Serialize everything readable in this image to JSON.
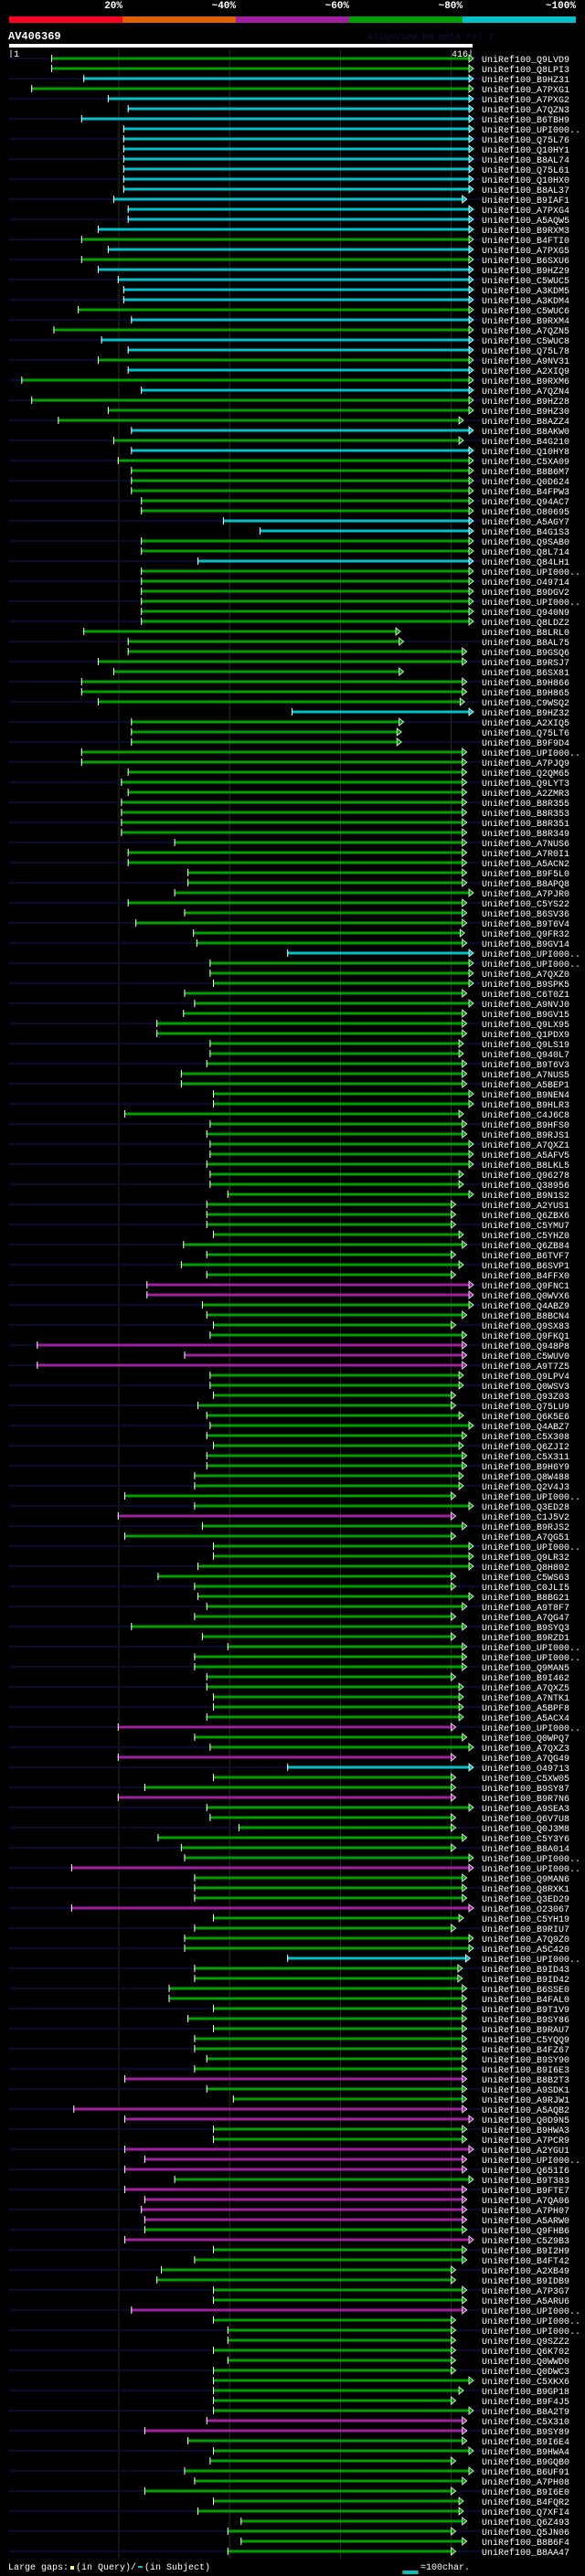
{
  "header": {
    "identity_scale": [
      "20%",
      "~40%",
      "~60%",
      "~80%",
      "~100%"
    ],
    "identity_colors": [
      "#ff0022",
      "#e06000",
      "#a020a0",
      "#00a000",
      "#00c0c8"
    ],
    "query_name": "AV406369",
    "version": "AlignView.pm Beta rel.7",
    "query_start": "|1",
    "query_end": "416|",
    "query_length": 416
  },
  "colors": {
    "g": "#00a000",
    "c": "#00c0c8",
    "m": "#a020a0"
  },
  "rows": [
    [
      "UniRef100_Q9LVD9",
      39,
      416,
      "g"
    ],
    [
      "UniRef100_Q8LPI3",
      39,
      416,
      "g"
    ],
    [
      "UniRef100_B9HZ31",
      68,
      416,
      "c"
    ],
    [
      "UniRef100_A7PXG1",
      21,
      416,
      "g"
    ],
    [
      "UniRef100_A7PXG2",
      90,
      416,
      "c"
    ],
    [
      "UniRef100_A7QZN3",
      108,
      416,
      "c"
    ],
    [
      "UniRef100_B6TBH9",
      66,
      416,
      "c"
    ],
    [
      "UniRef100_UPI000..",
      104,
      416,
      "c"
    ],
    [
      "UniRef100_Q75L76",
      104,
      416,
      "c"
    ],
    [
      "UniRef100_Q10HY1",
      104,
      416,
      "c"
    ],
    [
      "UniRef100_B8AL74",
      104,
      416,
      "c"
    ],
    [
      "UniRef100_Q75L61",
      104,
      416,
      "c"
    ],
    [
      "UniRef100_Q10HX0",
      104,
      416,
      "c"
    ],
    [
      "UniRef100_B8AL37",
      104,
      416,
      "c"
    ],
    [
      "UniRef100_B9IAF1",
      95,
      410,
      "c"
    ],
    [
      "UniRef100_A7PXG4",
      108,
      416,
      "c"
    ],
    [
      "UniRef100_A5AQW5",
      108,
      416,
      "c"
    ],
    [
      "UniRef100_B9RXM3",
      81,
      416,
      "c"
    ],
    [
      "UniRef100_B4FTI0",
      66,
      416,
      "g"
    ],
    [
      "UniRef100_A7PXG5",
      90,
      416,
      "c"
    ],
    [
      "UniRef100_B6SXU6",
      66,
      416,
      "g"
    ],
    [
      "UniRef100_B9HZ29",
      81,
      416,
      "c"
    ],
    [
      "UniRef100_C5WUC5",
      99,
      416,
      "c"
    ],
    [
      "UniRef100_A3KDM5",
      104,
      416,
      "c"
    ],
    [
      "UniRef100_A3KDM4",
      104,
      416,
      "c"
    ],
    [
      "UniRef100_C5WUC6",
      63,
      416,
      "g"
    ],
    [
      "UniRef100_B9RXM4",
      111,
      416,
      "c"
    ],
    [
      "UniRef100_A7QZN5",
      41,
      416,
      "g"
    ],
    [
      "UniRef100_C5WUC8",
      84,
      416,
      "c"
    ],
    [
      "UniRef100_Q75L78",
      108,
      416,
      "c"
    ],
    [
      "UniRef100_A9NV31",
      81,
      416,
      "g"
    ],
    [
      "UniRef100_A2XIQ9",
      108,
      416,
      "c"
    ],
    [
      "UniRef100_B9RXM6",
      12,
      416,
      "g"
    ],
    [
      "UniRef100_A7QZN4",
      120,
      416,
      "c"
    ],
    [
      "UniRef100_B9HZ28",
      21,
      416,
      "g"
    ],
    [
      "UniRef100_B9HZ30",
      90,
      416,
      "g"
    ],
    [
      "UniRef100_B8AZZ4",
      45,
      407,
      "g"
    ],
    [
      "UniRef100_B8AKW0",
      111,
      416,
      "c"
    ],
    [
      "UniRef100_B4G210",
      95,
      407,
      "g"
    ],
    [
      "UniRef100_Q10HY8",
      111,
      416,
      "c"
    ],
    [
      "UniRef100_C5XA09",
      99,
      416,
      "g"
    ],
    [
      "UniRef100_B8B6M7",
      111,
      416,
      "g"
    ],
    [
      "UniRef100_Q0D624",
      111,
      416,
      "g"
    ],
    [
      "UniRef100_B4FPW3",
      111,
      416,
      "g"
    ],
    [
      "UniRef100_Q94AC7",
      120,
      416,
      "g"
    ],
    [
      "UniRef100_O80695",
      120,
      416,
      "g"
    ],
    [
      "UniRef100_A5AGY7",
      194,
      416,
      "c"
    ],
    [
      "UniRef100_B4G1S3",
      227,
      416,
      "c"
    ],
    [
      "UniRef100_Q9SAB0",
      120,
      416,
      "g"
    ],
    [
      "UniRef100_Q8L714",
      120,
      416,
      "g"
    ],
    [
      "UniRef100_Q84LH1",
      171,
      416,
      "c"
    ],
    [
      "UniRef100_UPI000..",
      120,
      416,
      "g"
    ],
    [
      "UniRef100_O49714",
      120,
      416,
      "g"
    ],
    [
      "UniRef100_B9DGV2",
      120,
      416,
      "g"
    ],
    [
      "UniRef100_UPI000..",
      120,
      416,
      "g"
    ],
    [
      "UniRef100_Q940N9",
      120,
      416,
      "g"
    ],
    [
      "UniRef100_Q8LDZ2",
      120,
      416,
      "g"
    ],
    [
      "UniRef100_B8LRL0",
      68,
      350,
      "g"
    ],
    [
      "UniRef100_B8AL75",
      108,
      353,
      "g"
    ],
    [
      "UniRef100_B9GSQ6",
      108,
      410,
      "g"
    ],
    [
      "UniRef100_B9RSJ7",
      81,
      410,
      "g"
    ],
    [
      "UniRef100_B6SX81",
      95,
      353,
      "g"
    ],
    [
      "UniRef100_B9H866",
      66,
      410,
      "g"
    ],
    [
      "UniRef100_B9H865",
      66,
      410,
      "g"
    ],
    [
      "UniRef100_C9WSQ2",
      81,
      408,
      "g"
    ],
    [
      "UniRef100_B9HZ32",
      256,
      416,
      "c"
    ],
    [
      "UniRef100_A2XIQ5",
      111,
      353,
      "g"
    ],
    [
      "UniRef100_Q75LT6",
      111,
      351,
      "g"
    ],
    [
      "UniRef100_B9F9D4",
      111,
      351,
      "g"
    ],
    [
      "UniRef100_UPI000..",
      66,
      410,
      "g"
    ],
    [
      "UniRef100_A7PJQ9",
      66,
      410,
      "g"
    ],
    [
      "UniRef100_Q2QM65",
      108,
      410,
      "g"
    ],
    [
      "UniRef100_Q9LYT3",
      102,
      410,
      "g"
    ],
    [
      "UniRef100_A2ZMR3",
      108,
      410,
      "g"
    ],
    [
      "UniRef100_B8R355",
      102,
      410,
      "g"
    ],
    [
      "UniRef100_B8R353",
      102,
      410,
      "g"
    ],
    [
      "UniRef100_B8R351",
      102,
      410,
      "g"
    ],
    [
      "UniRef100_B8R349",
      102,
      410,
      "g"
    ],
    [
      "UniRef100_A7NUS6",
      150,
      410,
      "g"
    ],
    [
      "UniRef100_A7R0I1",
      108,
      410,
      "g"
    ],
    [
      "UniRef100_A5ACN2",
      108,
      410,
      "g"
    ],
    [
      "UniRef100_B9F5L0",
      162,
      410,
      "g"
    ],
    [
      "UniRef100_B8APQ8",
      162,
      410,
      "g"
    ],
    [
      "UniRef100_A7PJR0",
      150,
      416,
      "g"
    ],
    [
      "UniRef100_C5YS22",
      108,
      410,
      "g"
    ],
    [
      "UniRef100_B6SV36",
      159,
      410,
      "g"
    ],
    [
      "UniRef100_B9T6V4",
      115,
      410,
      "g"
    ],
    [
      "UniRef100_Q9FR32",
      167,
      408,
      "g"
    ],
    [
      "UniRef100_B9GV14",
      170,
      410,
      "g"
    ],
    [
      "UniRef100_UPI000..",
      252,
      416,
      "c"
    ],
    [
      "UniRef100_UPI000..",
      182,
      416,
      "g"
    ],
    [
      "UniRef100_A7QXZ0",
      182,
      416,
      "g"
    ],
    [
      "UniRef100_B9SPK5",
      185,
      416,
      "g"
    ],
    [
      "UniRef100_C6T0Z1",
      159,
      410,
      "g"
    ],
    [
      "UniRef100_A9NVJ0",
      168,
      416,
      "g"
    ],
    [
      "UniRef100_B9GV15",
      158,
      410,
      "g"
    ],
    [
      "UniRef100_Q9LX95",
      134,
      410,
      "g"
    ],
    [
      "UniRef100_Q1PDX9",
      134,
      410,
      "g"
    ],
    [
      "UniRef100_Q9LS19",
      182,
      407,
      "g"
    ],
    [
      "UniRef100_Q940L7",
      182,
      407,
      "g"
    ],
    [
      "UniRef100_B9T6V3",
      179,
      410,
      "g"
    ],
    [
      "UniRef100_A7NUS5",
      156,
      410,
      "g"
    ],
    [
      "UniRef100_A5BEP1",
      156,
      410,
      "g"
    ],
    [
      "UniRef100_B9NEN4",
      185,
      416,
      "g"
    ],
    [
      "UniRef100_B9HLR3",
      185,
      416,
      "g"
    ],
    [
      "UniRef100_C4J6C8",
      105,
      407,
      "g"
    ],
    [
      "UniRef100_B9HFS0",
      182,
      410,
      "g"
    ],
    [
      "UniRef100_B9RJS1",
      179,
      410,
      "g"
    ],
    [
      "UniRef100_A7QXZ1",
      182,
      416,
      "g"
    ],
    [
      "UniRef100_A5AFV5",
      182,
      416,
      "g"
    ],
    [
      "UniRef100_B8LKL5",
      179,
      416,
      "g"
    ],
    [
      "UniRef100_Q96278",
      182,
      407,
      "g"
    ],
    [
      "UniRef100_Q38956",
      182,
      407,
      "g"
    ],
    [
      "UniRef100_B9N1S2",
      198,
      416,
      "g"
    ],
    [
      "UniRef100_A2YUS1",
      179,
      400,
      "g"
    ],
    [
      "UniRef100_Q6ZBX6",
      179,
      400,
      "g"
    ],
    [
      "UniRef100_C5YMU7",
      179,
      400,
      "g"
    ],
    [
      "UniRef100_C5YHZ0",
      185,
      407,
      "g"
    ],
    [
      "UniRef100_Q6ZB84",
      158,
      410,
      "g"
    ],
    [
      "UniRef100_B6TVF7",
      179,
      400,
      "g"
    ],
    [
      "UniRef100_B6SVP1",
      156,
      407,
      "g"
    ],
    [
      "UniRef100_B4FFX0",
      179,
      400,
      "g"
    ],
    [
      "UniRef100_Q9FNC1",
      125,
      416,
      "m"
    ],
    [
      "UniRef100_Q0WVX6",
      125,
      416,
      "m"
    ],
    [
      "UniRef100_Q4ABZ9",
      175,
      416,
      "g"
    ],
    [
      "UniRef100_B8BCN4",
      179,
      410,
      "g"
    ],
    [
      "UniRef100_Q9SX83",
      185,
      400,
      "g"
    ],
    [
      "UniRef100_Q9FKQ1",
      182,
      410,
      "g"
    ],
    [
      "UniRef100_Q948P8",
      26,
      410,
      "m"
    ],
    [
      "UniRef100_C5WUV0",
      159,
      410,
      "m"
    ],
    [
      "UniRef100_A9T7Z5",
      26,
      410,
      "m"
    ],
    [
      "UniRef100_Q9LPV4",
      182,
      407,
      "g"
    ],
    [
      "UniRef100_Q0WSV3",
      182,
      407,
      "g"
    ],
    [
      "UniRef100_Q93Z03",
      185,
      400,
      "g"
    ],
    [
      "UniRef100_Q75LU9",
      171,
      400,
      "g"
    ],
    [
      "UniRef100_Q6K5E6",
      179,
      407,
      "g"
    ],
    [
      "UniRef100_Q4ABZ7",
      182,
      416,
      "g"
    ],
    [
      "UniRef100_C5X308",
      179,
      410,
      "g"
    ],
    [
      "UniRef100_Q6ZJI2",
      185,
      407,
      "g"
    ],
    [
      "UniRef100_C5X311",
      179,
      410,
      "g"
    ],
    [
      "UniRef100_B9H6Y9",
      179,
      410,
      "g"
    ],
    [
      "UniRef100_Q8W488",
      168,
      407,
      "g"
    ],
    [
      "UniRef100_Q2V4J3",
      168,
      407,
      "g"
    ],
    [
      "UniRef100_UPI000..",
      105,
      400,
      "g"
    ],
    [
      "UniRef100_Q3ED28",
      168,
      416,
      "g"
    ],
    [
      "UniRef100_C1J5V2",
      99,
      400,
      "m"
    ],
    [
      "UniRef100_B9RJS2",
      175,
      410,
      "g"
    ],
    [
      "UniRef100_A7QG51",
      105,
      400,
      "g"
    ],
    [
      "UniRef100_UPI000..",
      185,
      416,
      "g"
    ],
    [
      "UniRef100_Q9LR32",
      185,
      416,
      "g"
    ],
    [
      "UniRef100_Q8H802",
      171,
      416,
      "g"
    ],
    [
      "UniRef100_C5WS63",
      135,
      400,
      "g"
    ],
    [
      "UniRef100_C0JLI5",
      168,
      400,
      "g"
    ],
    [
      "UniRef100_B8BG21",
      171,
      416,
      "g"
    ],
    [
      "UniRef100_A9T8F7",
      179,
      410,
      "g"
    ],
    [
      "UniRef100_A7QG47",
      168,
      400,
      "g"
    ],
    [
      "UniRef100_B9SYQ3",
      111,
      410,
      "g"
    ],
    [
      "UniRef100_B9RZD1",
      175,
      400,
      "g"
    ],
    [
      "UniRef100_UPI000..",
      198,
      410,
      "g"
    ],
    [
      "UniRef100_UPI000..",
      168,
      410,
      "g"
    ],
    [
      "UniRef100_Q9MAN5",
      168,
      410,
      "g"
    ],
    [
      "UniRef100_B9I462",
      179,
      400,
      "g"
    ],
    [
      "UniRef100_A7QXZ5",
      179,
      407,
      "g"
    ],
    [
      "UniRef100_A7NTK1",
      185,
      407,
      "g"
    ],
    [
      "UniRef100_A5BPF8",
      185,
      407,
      "g"
    ],
    [
      "UniRef100_A5ACX4",
      179,
      407,
      "g"
    ],
    [
      "UniRef100_UPI000..",
      99,
      400,
      "m"
    ],
    [
      "UniRef100_Q0WPQ7",
      168,
      410,
      "g"
    ],
    [
      "UniRef100_A7QXZ3",
      182,
      416,
      "g"
    ],
    [
      "UniRef100_A7QG49",
      99,
      400,
      "m"
    ],
    [
      "UniRef100_O49713",
      252,
      416,
      "c"
    ],
    [
      "UniRef100_C5XW05",
      185,
      400,
      "g"
    ],
    [
      "UniRef100_B9SY87",
      123,
      400,
      "g"
    ],
    [
      "UniRef100_B9R7N6",
      99,
      400,
      "m"
    ],
    [
      "UniRef100_A9SEA3",
      179,
      416,
      "g"
    ],
    [
      "UniRef100_Q6V7U8",
      182,
      400,
      "g"
    ],
    [
      "UniRef100_Q0J3M8",
      208,
      400,
      "g"
    ],
    [
      "UniRef100_C5Y3Y6",
      135,
      410,
      "g"
    ],
    [
      "UniRef100_B8A014",
      156,
      400,
      "g"
    ],
    [
      "UniRef100_UPI000..",
      159,
      416,
      "g"
    ],
    [
      "UniRef100_UPI000..",
      57,
      416,
      "m"
    ],
    [
      "UniRef100_Q9MAN6",
      168,
      410,
      "g"
    ],
    [
      "UniRef100_Q8RXK1",
      168,
      410,
      "g"
    ],
    [
      "UniRef100_Q3ED29",
      168,
      410,
      "g"
    ],
    [
      "UniRef100_O23067",
      57,
      416,
      "m"
    ],
    [
      "UniRef100_C5YH19",
      185,
      407,
      "g"
    ],
    [
      "UniRef100_B9RIU7",
      168,
      400,
      "g"
    ],
    [
      "UniRef100_A7Q9Z0",
      159,
      416,
      "g"
    ],
    [
      "UniRef100_A5C420",
      159,
      416,
      "g"
    ],
    [
      "UniRef100_UPI000..",
      252,
      413,
      "c"
    ],
    [
      "UniRef100_B9ID43",
      168,
      406,
      "g"
    ],
    [
      "UniRef100_B9ID42",
      168,
      406,
      "g"
    ],
    [
      "UniRef100_B6SSE0",
      145,
      410,
      "g"
    ],
    [
      "UniRef100_B4FAL0",
      145,
      410,
      "g"
    ],
    [
      "UniRef100_B9T1V9",
      185,
      410,
      "g"
    ],
    [
      "UniRef100_B9SY86",
      162,
      410,
      "g"
    ],
    [
      "UniRef100_B9RAU7",
      185,
      410,
      "g"
    ],
    [
      "UniRef100_C5YQQ9",
      168,
      410,
      "g"
    ],
    [
      "UniRef100_B4FZ67",
      168,
      410,
      "g"
    ],
    [
      "UniRef100_B9SY90",
      179,
      410,
      "g"
    ],
    [
      "UniRef100_B9I6E3",
      168,
      410,
      "g"
    ],
    [
      "UniRef100_B8B2T3",
      105,
      410,
      "m"
    ],
    [
      "UniRef100_A9SDK1",
      179,
      410,
      "g"
    ],
    [
      "UniRef100_A9RJW1",
      203,
      410,
      "g"
    ],
    [
      "UniRef100_A5AQB2",
      59,
      410,
      "m"
    ],
    [
      "UniRef100_Q0D9N5",
      105,
      416,
      "m"
    ],
    [
      "UniRef100_B9HWA3",
      185,
      410,
      "g"
    ],
    [
      "UniRef100_A7PCR9",
      185,
      410,
      "g"
    ],
    [
      "UniRef100_A2YGU1",
      105,
      416,
      "m"
    ],
    [
      "UniRef100_UPI000..",
      123,
      410,
      "m"
    ],
    [
      "UniRef100_Q651I6",
      105,
      410,
      "m"
    ],
    [
      "UniRef100_B9T383",
      150,
      416,
      "g"
    ],
    [
      "UniRef100_B9FTE7",
      105,
      410,
      "m"
    ],
    [
      "UniRef100_A7QA06",
      123,
      410,
      "m"
    ],
    [
      "UniRef100_A7PH07",
      120,
      410,
      "m"
    ],
    [
      "UniRef100_A5ARW0",
      123,
      410,
      "m"
    ],
    [
      "UniRef100_Q9FHB6",
      123,
      410,
      "g"
    ],
    [
      "UniRef100_C5Z9B3",
      105,
      416,
      "m"
    ],
    [
      "UniRef100_B9I2H9",
      185,
      410,
      "g"
    ],
    [
      "UniRef100_B4FT42",
      168,
      410,
      "g"
    ],
    [
      "UniRef100_A2XB49",
      138,
      400,
      "g"
    ],
    [
      "UniRef100_B9IDB9",
      134,
      400,
      "g"
    ],
    [
      "UniRef100_A7P3G7",
      185,
      410,
      "g"
    ],
    [
      "UniRef100_A5ARU6",
      185,
      410,
      "g"
    ],
    [
      "UniRef100_UPI000..",
      111,
      410,
      "m"
    ],
    [
      "UniRef100_UPI000..",
      185,
      400,
      "g"
    ],
    [
      "UniRef100_UPI000..",
      198,
      400,
      "g"
    ],
    [
      "UniRef100_Q9SZZ2",
      198,
      400,
      "g"
    ],
    [
      "UniRef100_Q6K702",
      185,
      400,
      "g"
    ],
    [
      "UniRef100_Q0WWD0",
      198,
      400,
      "g"
    ],
    [
      "UniRef100_Q0DWC3",
      185,
      400,
      "g"
    ],
    [
      "UniRef100_C5XKX6",
      185,
      416,
      "g"
    ],
    [
      "UniRef100_B9GP18",
      185,
      407,
      "g"
    ],
    [
      "UniRef100_B9F4J5",
      185,
      400,
      "g"
    ],
    [
      "UniRef100_B8A2T9",
      185,
      416,
      "g"
    ],
    [
      "UniRef100_C5X310",
      179,
      410,
      "m"
    ],
    [
      "UniRef100_B9SY89",
      123,
      410,
      "m"
    ],
    [
      "UniRef100_B9I6E4",
      162,
      410,
      "g"
    ],
    [
      "UniRef100_B9HWA4",
      185,
      416,
      "g"
    ],
    [
      "UniRef100_B9GQB0",
      182,
      400,
      "g"
    ],
    [
      "UniRef100_B6UF91",
      159,
      416,
      "g"
    ],
    [
      "UniRef100_A7PH08",
      168,
      410,
      "g"
    ],
    [
      "UniRef100_B9I6E0",
      123,
      400,
      "g"
    ],
    [
      "UniRef100_B4FQR2",
      185,
      407,
      "g"
    ],
    [
      "UniRef100_Q7XFI4",
      171,
      407,
      "g"
    ],
    [
      "UniRef100_Q6Z493",
      210,
      410,
      "g"
    ],
    [
      "UniRef100_Q5JN06",
      198,
      400,
      "g"
    ],
    [
      "UniRef100_B8B6F4",
      210,
      410,
      "g"
    ],
    [
      "UniRef100_B8AA47",
      198,
      400,
      "g"
    ]
  ],
  "footer": {
    "large_gaps_label": "Large gaps:",
    "in_query": "(in Query)/",
    "in_subject": "(in Subject)",
    "scale_label": "=100char."
  }
}
